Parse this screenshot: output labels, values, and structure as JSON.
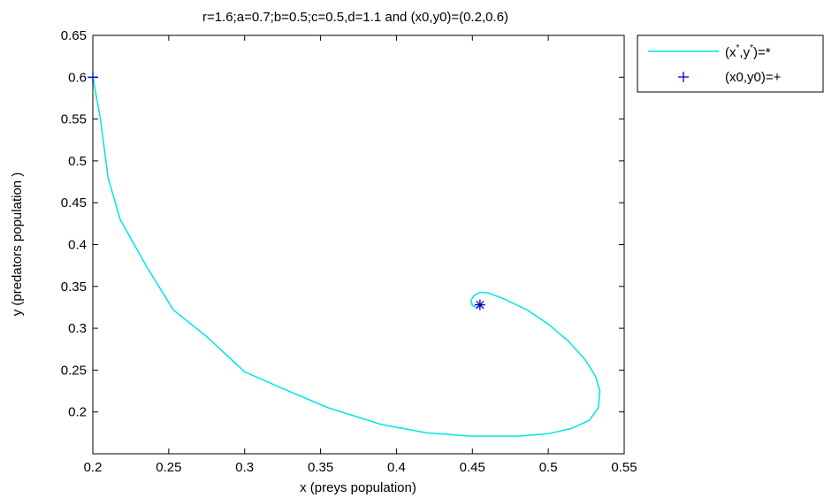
{
  "chart_data": {
    "type": "line",
    "title": "r=1.6;a=0.7;b=0.5;c=0.5,d=1.1 and (x0,y0)=(0.2,0.6)",
    "xlabel": "x (preys population)",
    "ylabel": "y (predators population )",
    "xlim": [
      0.2,
      0.55
    ],
    "ylim": [
      0.15,
      0.65
    ],
    "xticks": [
      0.2,
      0.25,
      0.3,
      0.35,
      0.4,
      0.45,
      0.5,
      0.55
    ],
    "yticks": [
      0.2,
      0.25,
      0.3,
      0.35,
      0.4,
      0.45,
      0.5,
      0.55,
      0.6,
      0.65
    ],
    "xtick_labels": [
      "0.2",
      "0.25",
      "0.3",
      "0.35",
      "0.4",
      "0.45",
      "0.5",
      "0.55"
    ],
    "ytick_labels": [
      "0.2",
      "0.25",
      "0.3",
      "0.35",
      "0.4",
      "0.45",
      "0.5",
      "0.55",
      "0.6",
      "0.65"
    ],
    "grid": false,
    "legend_position": "outside-top-right",
    "legend": [
      {
        "label_base": "(x",
        "label_mid": ",y",
        "label_end": ")=*",
        "sup": "*",
        "marker": "line",
        "color": "#00e5e5"
      },
      {
        "label": "(x0,y0)=+",
        "marker": "+",
        "color": "#0000cc"
      }
    ],
    "series": [
      {
        "color": "#00e5e5",
        "x": [
          0.2,
          0.205,
          0.21,
          0.218,
          0.235,
          0.253,
          0.275,
          0.3,
          0.325,
          0.355,
          0.39,
          0.42,
          0.45,
          0.48,
          0.5,
          0.515,
          0.527,
          0.533,
          0.534,
          0.531,
          0.524,
          0.513,
          0.5,
          0.486,
          0.471,
          0.461,
          0.455,
          0.451,
          0.449,
          0.45,
          0.453,
          0.456,
          0.455
        ],
        "y": [
          0.6,
          0.55,
          0.48,
          0.43,
          0.375,
          0.322,
          0.29,
          0.248,
          0.228,
          0.205,
          0.185,
          0.175,
          0.171,
          0.171,
          0.174,
          0.18,
          0.19,
          0.205,
          0.225,
          0.243,
          0.263,
          0.285,
          0.305,
          0.322,
          0.335,
          0.342,
          0.343,
          0.339,
          0.333,
          0.327,
          0.325,
          0.327,
          0.328
        ]
      }
    ],
    "markers": [
      {
        "name": "initial-point",
        "x": 0.2,
        "y": 0.6,
        "symbol": "+",
        "color": "#0000cc"
      },
      {
        "name": "equilibrium-point",
        "x": 0.455,
        "y": 0.328,
        "symbol": "*",
        "color": "#0000cc"
      }
    ]
  }
}
